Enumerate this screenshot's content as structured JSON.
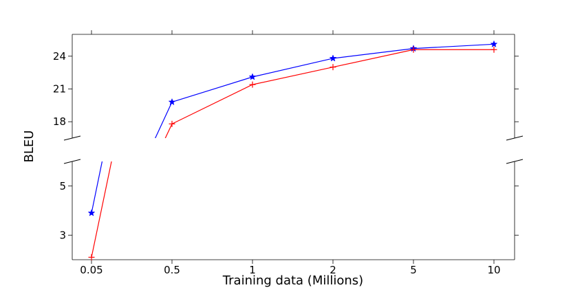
{
  "chart_data": {
    "type": "line",
    "title": "",
    "xlabel": "Training data (Millions)",
    "ylabel": "BLEU",
    "x_categories": [
      "0.05",
      "0.5",
      "1",
      "2",
      "5",
      "10"
    ],
    "broken_y_axis": true,
    "top_panel": {
      "ylim": [
        16.5,
        26.0
      ],
      "yticks": [
        "18",
        "21",
        "24"
      ]
    },
    "bottom_panel": {
      "ylim": [
        2.0,
        6.0
      ],
      "yticks": [
        "3",
        "5"
      ]
    },
    "series": [
      {
        "color": "#0000ff",
        "marker": "star",
        "values": [
          3.9,
          19.8,
          22.1,
          23.8,
          24.7,
          25.1
        ]
      },
      {
        "color": "#ff0000",
        "marker": "plus",
        "values": [
          2.1,
          17.8,
          21.4,
          23.0,
          24.6,
          24.6
        ]
      }
    ]
  }
}
